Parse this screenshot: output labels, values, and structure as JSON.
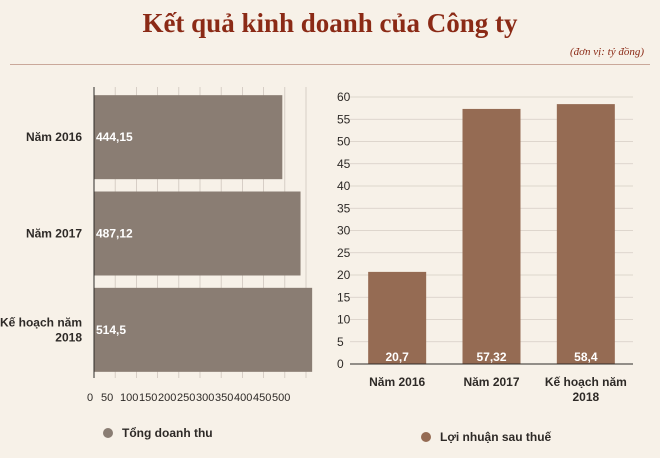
{
  "title": "Kết quả kinh doanh của Công ty",
  "subtitle": "(đơn vị: tỷ đồng)",
  "chart_data": [
    {
      "type": "bar",
      "orientation": "horizontal",
      "categories": [
        "Năm 2016",
        "Năm 2017",
        "Kế hoạch năm 2018"
      ],
      "series": [
        {
          "name": "Tổng doanh thu",
          "values": [
            444.15,
            487.12,
            514.5
          ],
          "color": "#8a7d73"
        }
      ],
      "data_labels": [
        "444,15",
        "487,12",
        "514,5"
      ],
      "xlim": [
        0,
        500
      ],
      "x_ticks": [
        "0",
        "50",
        "100",
        "150",
        "200",
        "250",
        "300",
        "350",
        "400",
        "450",
        "500"
      ],
      "grid": true,
      "legend": "bottom"
    },
    {
      "type": "bar",
      "orientation": "vertical",
      "categories": [
        "Năm 2016",
        "Năm 2017",
        "Kế hoạch năm 2018"
      ],
      "series": [
        {
          "name": "Lợi nhuận sau thuế",
          "values": [
            20.7,
            57.32,
            58.4
          ],
          "color": "#956b53"
        }
      ],
      "data_labels": [
        "20,7",
        "57,32",
        "58,4"
      ],
      "ylim": [
        0,
        60
      ],
      "y_ticks": [
        "0",
        "5",
        "10",
        "15",
        "20",
        "25",
        "30",
        "35",
        "40",
        "45",
        "50",
        "55",
        "60"
      ],
      "grid": true,
      "legend": "bottom"
    }
  ]
}
